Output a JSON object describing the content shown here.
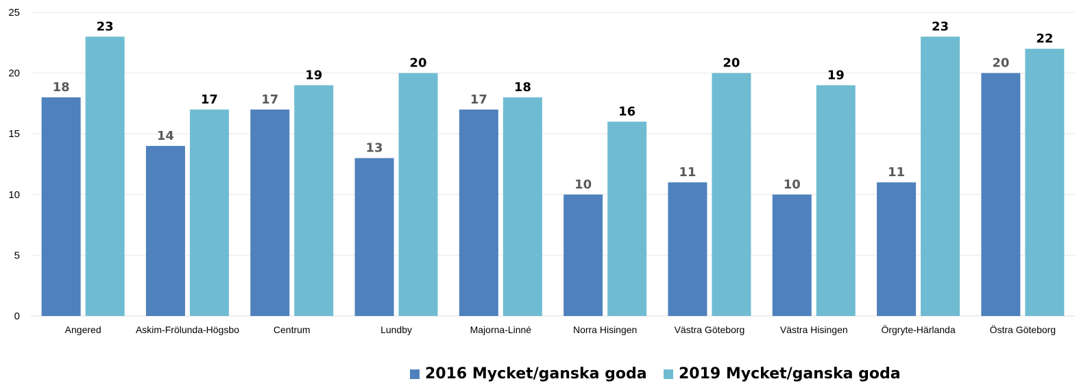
{
  "chart_data": {
    "type": "bar",
    "categories": [
      "Angered",
      "Askim-Frölunda-Högsbo",
      "Centrum",
      "Lundby",
      "Majorna-Linné",
      "Norra Hisingen",
      "Västra Göteborg",
      "Västra Hisingen",
      "Örgryte-Härlanda",
      "Östra Göteborg"
    ],
    "series": [
      {
        "name": "2016 Mycket/ganska goda",
        "values": [
          18,
          14,
          17,
          13,
          17,
          10,
          11,
          10,
          11,
          20
        ],
        "color": "#4f81bd"
      },
      {
        "name": "2019 Mycket/ganska goda",
        "values": [
          23,
          17,
          19,
          20,
          18,
          16,
          20,
          19,
          23,
          22
        ],
        "color": "#6fbcd2"
      }
    ],
    "ylim": [
      0,
      25
    ],
    "yticks": [
      0,
      5,
      10,
      15,
      20,
      25
    ],
    "grid": true,
    "legend_position": "bottom-center",
    "data_labels": true
  }
}
